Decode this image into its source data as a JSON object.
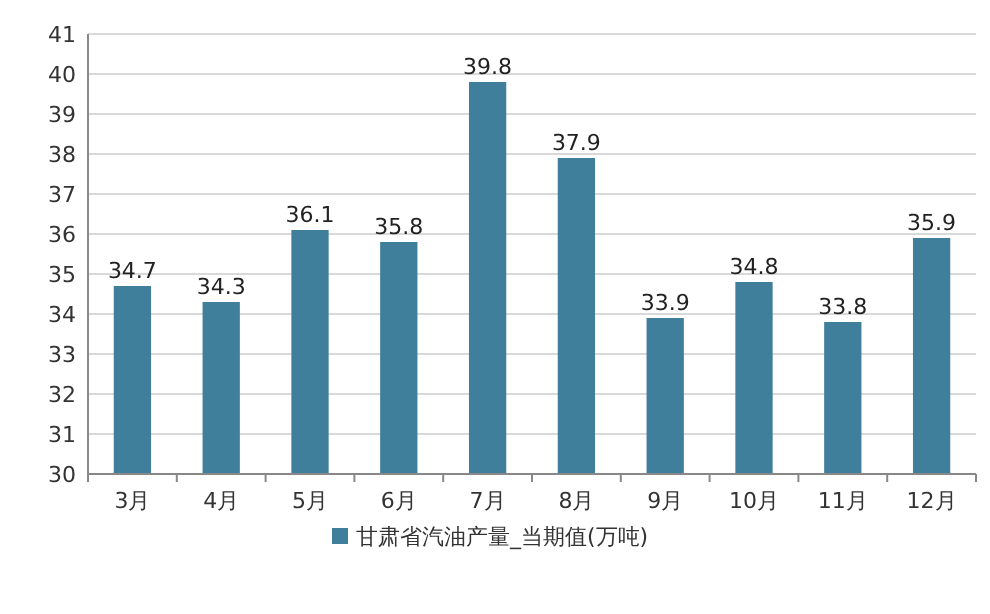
{
  "chart_data": {
    "type": "bar",
    "categories": [
      "3月",
      "4月",
      "5月",
      "6月",
      "7月",
      "8月",
      "9月",
      "10月",
      "11月",
      "12月"
    ],
    "series": [
      {
        "name": "甘肃省汽油产量_当期值(万吨)",
        "color": "#3f7f9c",
        "values": [
          34.7,
          34.3,
          36.1,
          35.8,
          39.8,
          37.9,
          33.9,
          34.8,
          33.8,
          35.9
        ]
      }
    ],
    "ylim": [
      30,
      41
    ],
    "yticks": [
      30,
      31,
      32,
      33,
      34,
      35,
      36,
      37,
      38,
      39,
      40,
      41
    ],
    "grid": "y",
    "data_labels": true,
    "legend": "bottom"
  }
}
